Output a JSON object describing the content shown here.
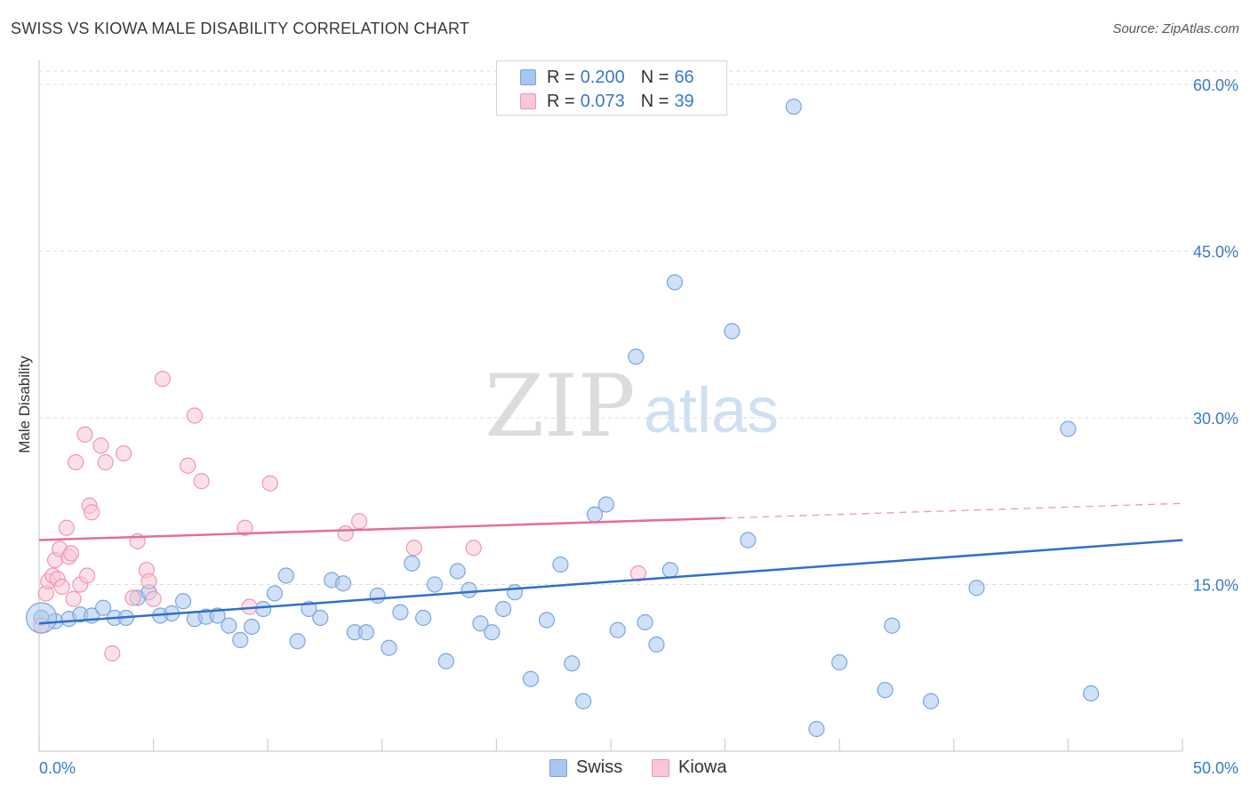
{
  "title": "SWISS VS KIOWA MALE DISABILITY CORRELATION CHART",
  "source": "Source: ZipAtlas.com",
  "watermark": {
    "zip": "ZIP",
    "atlas": "atlas"
  },
  "legend": {
    "rows": [
      {
        "r_label": "R =",
        "r_value": "0.200",
        "n_label": "N =",
        "n_value": "66",
        "color": "#a9c7ee",
        "border": "#7aa5dd"
      },
      {
        "r_label": "R =",
        "r_value": "0.073",
        "n_label": "N =",
        "n_value": "39",
        "color": "#f9c6d5",
        "border": "#ef96b2"
      }
    ]
  },
  "bottom_legend": [
    {
      "label": "Swiss",
      "color": "#a9c7ee",
      "border": "#7aa5dd"
    },
    {
      "label": "Kiowa",
      "color": "#f9c6d5",
      "border": "#ef96b2"
    }
  ],
  "chart_data": {
    "type": "scatter",
    "title": "SWISS VS KIOWA MALE DISABILITY CORRELATION CHART",
    "xlabel": "",
    "ylabel": "Male Disability",
    "xlim": [
      0,
      50
    ],
    "ylim": [
      0,
      60
    ],
    "x_tick_labels": [
      "0.0%",
      "50.0%"
    ],
    "y_ticks": [
      15,
      30,
      45,
      60
    ],
    "y_tick_labels": [
      "15.0%",
      "30.0%",
      "45.0%",
      "60.0%"
    ],
    "series": [
      {
        "name": "Swiss",
        "color": "#a9c7ee",
        "stroke": "#7aa5dd",
        "line_color": "#2f6fca",
        "trend": {
          "x0": 0,
          "y0": 11.5,
          "x1": 50,
          "y1": 19.0,
          "solid_until": 50
        },
        "points": [
          [
            0.1,
            12.0
          ],
          [
            0.7,
            11.7
          ],
          [
            1.3,
            11.9
          ],
          [
            1.8,
            12.3
          ],
          [
            2.3,
            12.2
          ],
          [
            2.8,
            12.9
          ],
          [
            3.3,
            12.0
          ],
          [
            3.8,
            12.0
          ],
          [
            4.3,
            13.8
          ],
          [
            4.8,
            14.3
          ],
          [
            5.3,
            12.2
          ],
          [
            5.8,
            12.4
          ],
          [
            6.3,
            13.5
          ],
          [
            6.8,
            11.9
          ],
          [
            7.3,
            12.1
          ],
          [
            7.8,
            12.2
          ],
          [
            8.3,
            11.3
          ],
          [
            8.8,
            10.0
          ],
          [
            9.3,
            11.2
          ],
          [
            9.8,
            12.8
          ],
          [
            10.3,
            14.2
          ],
          [
            10.8,
            15.8
          ],
          [
            11.3,
            9.9
          ],
          [
            11.8,
            12.8
          ],
          [
            12.3,
            12.0
          ],
          [
            12.8,
            15.4
          ],
          [
            13.3,
            15.1
          ],
          [
            13.8,
            10.7
          ],
          [
            14.3,
            10.7
          ],
          [
            14.8,
            14.0
          ],
          [
            15.3,
            9.3
          ],
          [
            15.8,
            12.5
          ],
          [
            16.3,
            16.9
          ],
          [
            16.8,
            12.0
          ],
          [
            17.3,
            15.0
          ],
          [
            17.8,
            8.1
          ],
          [
            18.3,
            16.2
          ],
          [
            18.8,
            14.5
          ],
          [
            19.3,
            11.5
          ],
          [
            19.8,
            10.7
          ],
          [
            20.3,
            12.8
          ],
          [
            20.8,
            14.3
          ],
          [
            21.5,
            6.5
          ],
          [
            22.2,
            11.8
          ],
          [
            22.8,
            16.8
          ],
          [
            23.3,
            7.9
          ],
          [
            23.8,
            4.5
          ],
          [
            24.3,
            21.3
          ],
          [
            24.8,
            22.2
          ],
          [
            25.3,
            10.9
          ],
          [
            26.1,
            35.5
          ],
          [
            26.5,
            11.6
          ],
          [
            27.0,
            9.6
          ],
          [
            27.6,
            16.3
          ],
          [
            27.8,
            42.2
          ],
          [
            30.3,
            37.8
          ],
          [
            31.0,
            19.0
          ],
          [
            33.0,
            58.0
          ],
          [
            34.0,
            2.0
          ],
          [
            35.0,
            8.0
          ],
          [
            37.0,
            5.5
          ],
          [
            37.3,
            11.3
          ],
          [
            39.0,
            4.5
          ],
          [
            41.0,
            14.7
          ],
          [
            45.0,
            29.0
          ],
          [
            46.0,
            5.2
          ]
        ]
      },
      {
        "name": "Kiowa",
        "color": "#f9c6d5",
        "stroke": "#ef96b2",
        "line_color": "#e36e98",
        "trend": {
          "x0": 0,
          "y0": 19.0,
          "x1": 50,
          "y1": 22.3,
          "solid_until": 30.0
        },
        "points": [
          [
            0.1,
            11.3
          ],
          [
            0.3,
            14.2
          ],
          [
            0.4,
            15.3
          ],
          [
            0.6,
            15.8
          ],
          [
            0.7,
            17.2
          ],
          [
            0.8,
            15.5
          ],
          [
            0.9,
            18.2
          ],
          [
            1.0,
            14.8
          ],
          [
            1.2,
            20.1
          ],
          [
            1.3,
            17.5
          ],
          [
            1.4,
            17.8
          ],
          [
            1.5,
            13.7
          ],
          [
            1.6,
            26.0
          ],
          [
            1.8,
            15.0
          ],
          [
            2.0,
            28.5
          ],
          [
            2.1,
            15.8
          ],
          [
            2.2,
            22.1
          ],
          [
            2.3,
            21.5
          ],
          [
            2.7,
            27.5
          ],
          [
            2.9,
            26.0
          ],
          [
            3.2,
            8.8
          ],
          [
            3.7,
            26.8
          ],
          [
            4.1,
            13.8
          ],
          [
            4.3,
            18.9
          ],
          [
            4.7,
            16.3
          ],
          [
            4.8,
            15.3
          ],
          [
            5.0,
            13.7
          ],
          [
            5.4,
            33.5
          ],
          [
            6.5,
            25.7
          ],
          [
            6.8,
            30.2
          ],
          [
            7.1,
            24.3
          ],
          [
            9.0,
            20.1
          ],
          [
            9.2,
            13.0
          ],
          [
            10.1,
            24.1
          ],
          [
            13.4,
            19.6
          ],
          [
            14.0,
            20.7
          ],
          [
            16.4,
            18.3
          ],
          [
            19.0,
            18.3
          ],
          [
            26.2,
            16.0
          ]
        ]
      }
    ]
  }
}
